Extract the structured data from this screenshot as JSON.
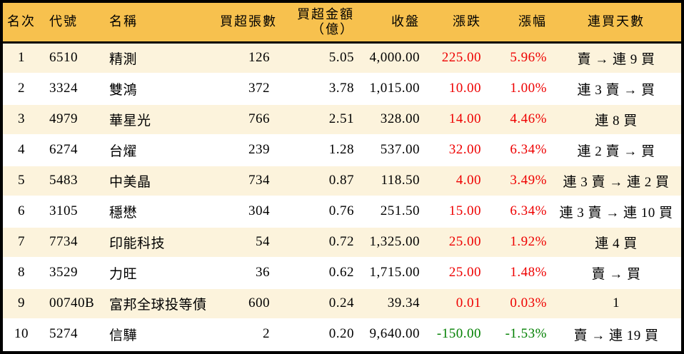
{
  "chart_data": {
    "type": "table",
    "columns": [
      {
        "key": "rank",
        "label": "名次",
        "align": "center"
      },
      {
        "key": "code",
        "label": "代號",
        "align": "left"
      },
      {
        "key": "name",
        "label": "名稱",
        "align": "left"
      },
      {
        "key": "volume",
        "label": "買超張數",
        "align": "right"
      },
      {
        "key": "amount",
        "label": "買超金額",
        "label2": "（億）",
        "align": "right"
      },
      {
        "key": "close",
        "label": "收盤",
        "align": "right"
      },
      {
        "key": "change",
        "label": "漲跌",
        "align": "right"
      },
      {
        "key": "change_pct",
        "label": "漲幅",
        "align": "right"
      },
      {
        "key": "streak",
        "label": "連買天數",
        "align": "center"
      }
    ],
    "rows": [
      {
        "rank": "1",
        "code": "6510",
        "name": "精測",
        "volume": "126",
        "amount": "5.05",
        "close": "4,000.00",
        "change": "225.00",
        "change_pct": "5.96%",
        "streak": "賣 → 連 9 買",
        "direction": "up"
      },
      {
        "rank": "2",
        "code": "3324",
        "name": "雙鴻",
        "volume": "372",
        "amount": "3.78",
        "close": "1,015.00",
        "change": "10.00",
        "change_pct": "1.00%",
        "streak": "連 3 賣 → 買",
        "direction": "up"
      },
      {
        "rank": "3",
        "code": "4979",
        "name": "華星光",
        "volume": "766",
        "amount": "2.51",
        "close": "328.00",
        "change": "14.00",
        "change_pct": "4.46%",
        "streak": "連 8 買",
        "direction": "up"
      },
      {
        "rank": "4",
        "code": "6274",
        "name": "台燿",
        "volume": "239",
        "amount": "1.28",
        "close": "537.00",
        "change": "32.00",
        "change_pct": "6.34%",
        "streak": "連 2 賣 → 買",
        "direction": "up"
      },
      {
        "rank": "5",
        "code": "5483",
        "name": "中美晶",
        "volume": "734",
        "amount": "0.87",
        "close": "118.50",
        "change": "4.00",
        "change_pct": "3.49%",
        "streak": "連 3 賣 → 連 2 買",
        "direction": "up"
      },
      {
        "rank": "6",
        "code": "3105",
        "name": "穩懋",
        "volume": "304",
        "amount": "0.76",
        "close": "251.50",
        "change": "15.00",
        "change_pct": "6.34%",
        "streak": "連 3 賣 → 連 10 買",
        "direction": "up"
      },
      {
        "rank": "7",
        "code": "7734",
        "name": "印能科技",
        "volume": "54",
        "amount": "0.72",
        "close": "1,325.00",
        "change": "25.00",
        "change_pct": "1.92%",
        "streak": "連 4 買",
        "direction": "up"
      },
      {
        "rank": "8",
        "code": "3529",
        "name": "力旺",
        "volume": "36",
        "amount": "0.62",
        "close": "1,715.00",
        "change": "25.00",
        "change_pct": "1.48%",
        "streak": "賣 → 買",
        "direction": "up"
      },
      {
        "rank": "9",
        "code": "00740B",
        "name": "富邦全球投等債",
        "volume": "600",
        "amount": "0.24",
        "close": "39.34",
        "change": "0.01",
        "change_pct": "0.03%",
        "streak": "1",
        "direction": "up"
      },
      {
        "rank": "10",
        "code": "5274",
        "name": "信驊",
        "volume": "2",
        "amount": "0.20",
        "close": "9,640.00",
        "change": "-150.00",
        "change_pct": "-1.53%",
        "streak": "賣 → 連 19 買",
        "direction": "down"
      }
    ]
  },
  "colors": {
    "header_bg": "#f7c14e",
    "row_stripe_bg": "#fcf3dc",
    "row_bg": "#ffffff",
    "up_text": "#ee0000",
    "down_text": "#007f00",
    "text": "#000000",
    "border": "#000000"
  }
}
